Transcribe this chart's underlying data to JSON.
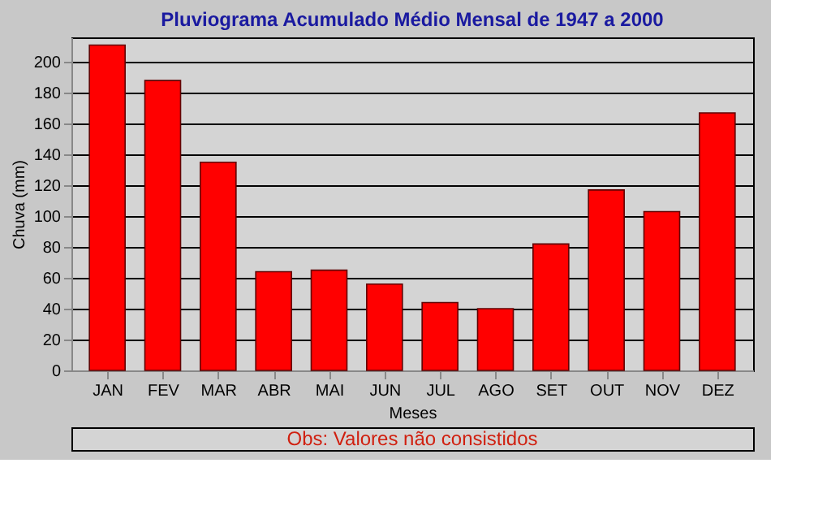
{
  "chart_data": {
    "type": "bar",
    "title": "Pluviograma Acumulado Médio Mensal de 1947 a 2000",
    "xlabel": "Meses",
    "ylabel": "Chuva (mm)",
    "categories": [
      "JAN",
      "FEV",
      "MAR",
      "ABR",
      "MAI",
      "JUN",
      "JUL",
      "AGO",
      "SET",
      "OUT",
      "NOV",
      "DEZ"
    ],
    "values": [
      211,
      188,
      135,
      64,
      65,
      56,
      44,
      40,
      82,
      117,
      103,
      167
    ],
    "color": "#ff0000",
    "ylim": [
      0,
      216
    ],
    "yticks": [
      0,
      20,
      40,
      60,
      80,
      100,
      120,
      140,
      160,
      180,
      200
    ],
    "grid": "y",
    "annotations": [
      "Obs: Valores não consistidos"
    ]
  }
}
